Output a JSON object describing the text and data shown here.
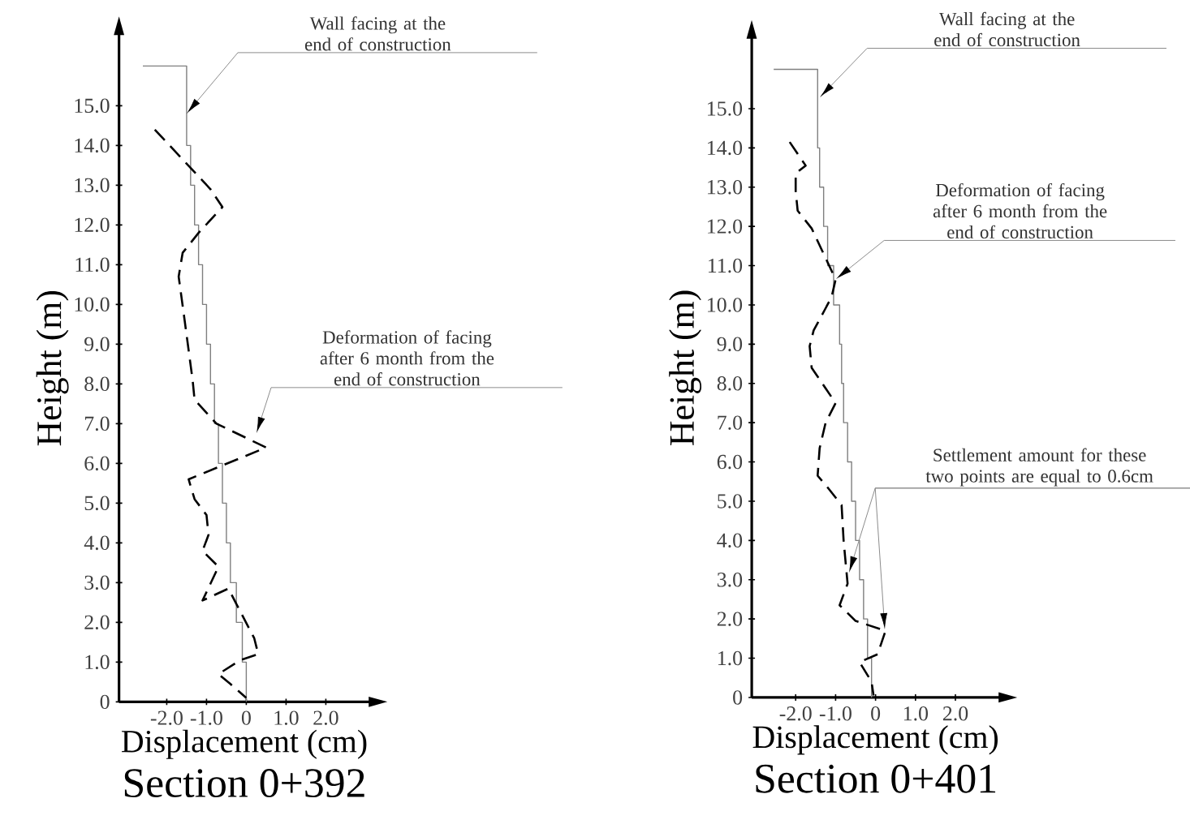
{
  "chart_data": [
    {
      "type": "line",
      "title": "Section 0+392",
      "xlabel": "Displacement (cm)",
      "ylabel": "Height (m)",
      "xlim": [
        -3.2,
        3.1
      ],
      "ylim": [
        0,
        16.8
      ],
      "xticks": [
        {
          "value": -2,
          "label": "-2.0"
        },
        {
          "value": -1,
          "label": "-1.0"
        },
        0,
        {
          "value": 1,
          "label": "1.0"
        },
        {
          "value": 2,
          "label": "2.0"
        }
      ],
      "yticks": [
        0,
        {
          "value": 1,
          "label": "1.0"
        },
        {
          "value": 2,
          "label": "2.0"
        },
        {
          "value": 3,
          "label": "3.0"
        },
        {
          "value": 4,
          "label": "4.0"
        },
        {
          "value": 5,
          "label": "5.0"
        },
        {
          "value": 6,
          "label": "6.0"
        },
        {
          "value": 7,
          "label": "7.0"
        },
        {
          "value": 8,
          "label": "8.0"
        },
        {
          "value": 9,
          "label": "9.0"
        },
        {
          "value": 10,
          "label": "10.0"
        },
        {
          "value": 11,
          "label": "11.0"
        },
        {
          "value": 12,
          "label": "12.0"
        },
        {
          "value": 13,
          "label": "13.0"
        },
        {
          "value": 14,
          "label": "14.0"
        },
        {
          "value": 15,
          "label": "15.0"
        }
      ],
      "grid": false,
      "series": [
        {
          "color": "#7f7f7f",
          "line_style": "solid",
          "x": [
            -2.6,
            -1.5,
            -1.5,
            -1.4,
            -1.4,
            -1.3,
            -1.3,
            -1.2,
            -1.2,
            -1.1,
            -1.1,
            -1.0,
            -1.0,
            -0.9,
            -0.9,
            -0.8,
            -0.8,
            -0.7,
            -0.7,
            -0.6,
            -0.6,
            -0.5,
            -0.5,
            -0.4,
            -0.4,
            -0.25,
            -0.25,
            -0.1,
            -0.1,
            0,
            0
          ],
          "values": [
            16,
            16,
            14,
            14,
            13,
            13,
            12,
            12,
            11,
            11,
            10,
            10,
            9,
            9,
            8,
            8,
            7,
            7,
            6,
            6,
            5,
            5,
            4,
            4,
            3,
            3,
            2,
            2,
            1,
            1,
            0
          ]
        },
        {
          "color": "#000000",
          "line_style": "dashed",
          "x": [
            -2.3,
            -0.9,
            -0.6,
            -1.2,
            -1.6,
            -1.7,
            -1.55,
            -1.35,
            -1.3,
            -0.75,
            0.5,
            -0.6,
            -1.45,
            -1.3,
            -1.0,
            -0.95,
            -1.1,
            -0.7,
            -1.1,
            -0.45,
            0.2,
            0.3,
            -0.15,
            -0.7,
            -0.4,
            0
          ],
          "values": [
            14.4,
            12.9,
            12.45,
            11.8,
            11.3,
            10.7,
            9.6,
            8.1,
            7.6,
            7.0,
            6.4,
            5.95,
            5.6,
            5.1,
            4.7,
            4.2,
            3.8,
            3.4,
            2.55,
            2.85,
            1.6,
            1.2,
            1.05,
            0.7,
            0.45,
            0.1
          ]
        }
      ],
      "annotations": [
        "Wall facing at the end of construction",
        "Deformation of facing after 6 month from the end of construction"
      ]
    },
    {
      "type": "line",
      "title": "Section 0+401",
      "xlabel": "Displacement (cm)",
      "ylabel": "Height (m)",
      "xlim": [
        -3.1,
        3.1
      ],
      "ylim": [
        0,
        16.8
      ],
      "xticks": [
        {
          "value": -2,
          "label": "-2.0"
        },
        {
          "value": -1,
          "label": "-1.0"
        },
        0,
        {
          "value": 1,
          "label": "1.0"
        },
        {
          "value": 2,
          "label": "2.0"
        }
      ],
      "yticks": [
        0,
        {
          "value": 1,
          "label": "1.0"
        },
        {
          "value": 2,
          "label": "2.0"
        },
        {
          "value": 3,
          "label": "3.0"
        },
        {
          "value": 4,
          "label": "4.0"
        },
        {
          "value": 5,
          "label": "5.0"
        },
        {
          "value": 6,
          "label": "6.0"
        },
        {
          "value": 7,
          "label": "7.0"
        },
        {
          "value": 8,
          "label": "8.0"
        },
        {
          "value": 9,
          "label": "9.0"
        },
        {
          "value": 10,
          "label": "10.0"
        },
        {
          "value": 11,
          "label": "11.0"
        },
        {
          "value": 12,
          "label": "12.0"
        },
        {
          "value": 13,
          "label": "13.0"
        },
        {
          "value": 14,
          "label": "14.0"
        },
        {
          "value": 15,
          "label": "15.0"
        }
      ],
      "grid": false,
      "series": [
        {
          "color": "#7f7f7f",
          "line_style": "solid",
          "x": [
            -2.55,
            -1.45,
            -1.45,
            -1.4,
            -1.4,
            -1.3,
            -1.3,
            -1.2,
            -1.2,
            -1.05,
            -1.05,
            -0.9,
            -0.9,
            -0.85,
            -0.85,
            -0.8,
            -0.8,
            -0.7,
            -0.7,
            -0.6,
            -0.6,
            -0.5,
            -0.5,
            -0.4,
            -0.4,
            -0.3,
            -0.3,
            -0.2,
            -0.2,
            -0.1,
            -0.1
          ],
          "values": [
            16,
            16,
            14,
            14,
            13,
            13,
            12,
            12,
            11,
            11,
            10,
            10,
            9,
            9,
            8,
            8,
            7,
            7,
            6,
            6,
            5,
            5,
            4,
            4,
            3,
            3,
            2,
            2,
            1,
            1,
            0
          ]
        },
        {
          "color": "#000000",
          "line_style": "dashed",
          "x": [
            -2.15,
            -1.75,
            -2.0,
            -2.0,
            -1.95,
            -1.6,
            -1.0,
            -1.1,
            -1.55,
            -1.65,
            -1.6,
            -1.4,
            -1.0,
            -1.25,
            -1.4,
            -1.45,
            -1.2,
            -0.85,
            -0.8,
            -0.7,
            -0.9,
            -0.5,
            0.25,
            0.05,
            -0.4,
            -0.1,
            -0.05
          ],
          "values": [
            14.15,
            13.55,
            13.35,
            12.9,
            12.4,
            11.95,
            10.65,
            10.2,
            9.35,
            8.95,
            8.4,
            8.1,
            7.5,
            7.0,
            6.35,
            5.65,
            5.35,
            4.9,
            4.0,
            2.9,
            2.35,
            1.95,
            1.7,
            1.1,
            0.9,
            0.4,
            0.05
          ]
        }
      ],
      "annotations": [
        "Wall facing at the end of construction",
        "Deformation of facing after 6 month from the end of construction",
        "Settlement amount for these two points are equal to 0.6cm"
      ]
    }
  ]
}
